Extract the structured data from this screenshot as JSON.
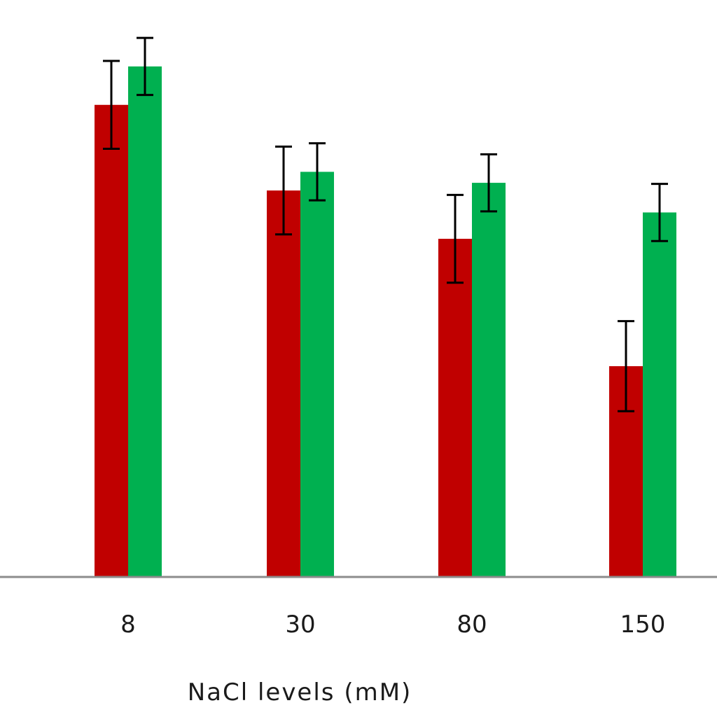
{
  "chart_data": {
    "type": "bar",
    "categories": [
      "8",
      "30",
      "80",
      "150"
    ],
    "series": [
      {
        "color": "#c00000",
        "values": [
          86.0,
          70.4,
          61.6,
          38.4
        ],
        "errors": [
          8.0,
          8.0,
          8.0,
          8.2
        ]
      },
      {
        "color": "#00b050",
        "values": [
          93.0,
          73.8,
          71.8,
          66.4
        ],
        "errors": [
          5.2,
          5.2,
          5.2,
          5.2
        ]
      }
    ],
    "xlabel": "NaCl levels (mM)",
    "ylabel": "",
    "ylim": [
      0,
      100
    ],
    "grid": false,
    "legend": "none"
  }
}
